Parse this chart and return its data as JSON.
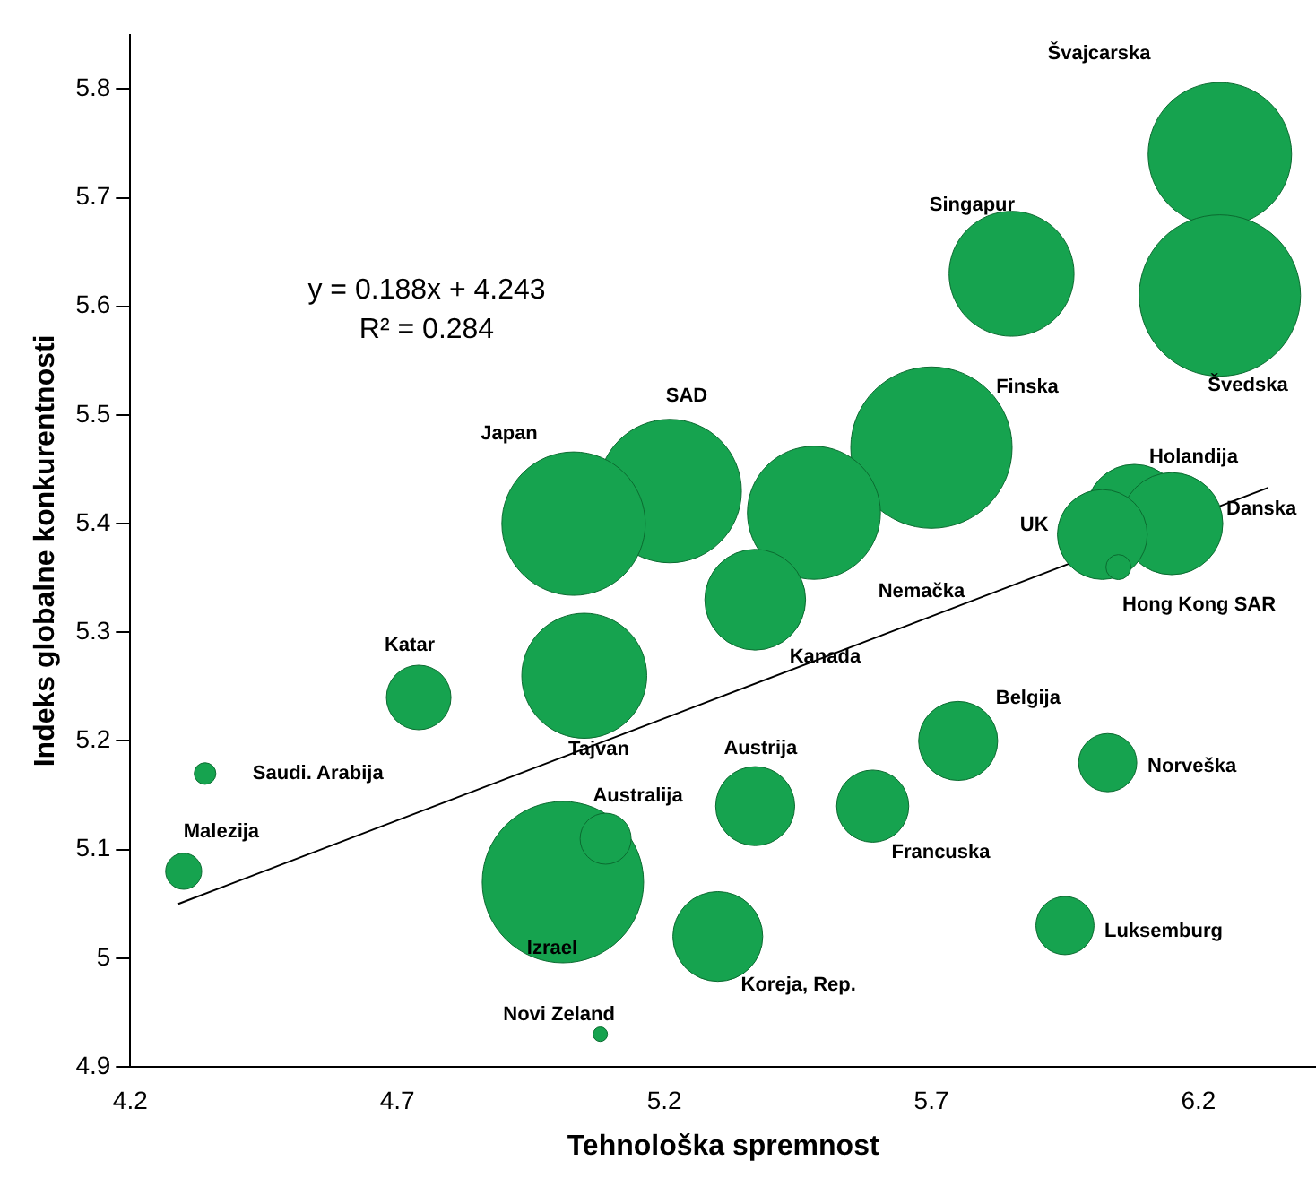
{
  "chart_data": {
    "type": "bubble",
    "xlabel": "Tehnološka spremnost",
    "ylabel": "Indeks globalne konkurentnosti",
    "xlim": [
      4.2,
      6.42
    ],
    "ylim": [
      4.9,
      5.85
    ],
    "xticks": [
      4.2,
      4.7,
      5.2,
      5.7,
      6.2
    ],
    "yticks": [
      4.9,
      5,
      5.1,
      5.2,
      5.3,
      5.4,
      5.5,
      5.6,
      5.7,
      5.8
    ],
    "grid": false,
    "legend": false,
    "series": [
      {
        "type": "bubble",
        "color": "#16a34f",
        "x": [
          6.24,
          6.24,
          5.85,
          5.7,
          5.21,
          5.03,
          6.08,
          6.15,
          6.02,
          6.05,
          5.48,
          5.37,
          4.74,
          5.05,
          5.75,
          6.03,
          4.34,
          5.37,
          5.59,
          4.3,
          5.01,
          5.09,
          5.3,
          5.95,
          5.08
        ],
        "values": [
          5.74,
          5.61,
          5.63,
          5.47,
          5.43,
          5.4,
          5.41,
          5.4,
          5.39,
          5.36,
          5.41,
          5.33,
          5.24,
          5.26,
          5.2,
          5.18,
          5.17,
          5.14,
          5.14,
          5.08,
          5.07,
          5.11,
          5.02,
          5.03,
          4.93
        ],
        "sizes": [
          0.79,
          1,
          0.6,
          1,
          0.79,
          0.79,
          0.36,
          0.4,
          0.31,
          0.024,
          0.68,
          0.39,
          0.16,
          0.6,
          0.24,
          0.13,
          0.018,
          0.24,
          0.2,
          0.05,
          1,
          0.1,
          0.31,
          0.13,
          0.008
        ]
      },
      {
        "type": "line",
        "color": "#000000",
        "x": [
          4.29,
          6.33
        ],
        "values": [
          5.05,
          5.433
        ]
      }
    ],
    "annotations": [
      "y = 0.188x + 4.243",
      "R² = 0.284",
      "Švajcarska",
      "Švedska",
      "Finska",
      "SAD",
      "Japan",
      "Nemačka",
      "Tajvan",
      {
        "text": "Singapur",
        "x": 5.85,
        "y": 5.63
      },
      {
        "text": "Holandija",
        "x": 6.08,
        "y": 5.41
      },
      {
        "text": "Danska",
        "x": 6.15,
        "y": 5.4
      },
      {
        "text": "UK",
        "x": 6.02,
        "y": 5.39
      },
      {
        "text": "Hong Kong SAR",
        "x": 6.05,
        "y": 5.36
      },
      {
        "text": "Kanada",
        "x": 5.37,
        "y": 5.33
      },
      {
        "text": "Katar",
        "x": 4.74,
        "y": 5.24
      },
      {
        "text": "Belgija",
        "x": 5.75,
        "y": 5.2
      },
      {
        "text": "Norveška",
        "x": 6.03,
        "y": 5.18
      },
      {
        "text": "Saudi. Arabija",
        "x": 4.34,
        "y": 5.17
      },
      {
        "text": "Austrija",
        "x": 5.37,
        "y": 5.14
      },
      {
        "text": "Francuska",
        "x": 5.59,
        "y": 5.14
      },
      {
        "text": "Malezija",
        "x": 4.3,
        "y": 5.08
      },
      {
        "text": "Izrael",
        "x": 5.01,
        "y": 5.07
      },
      {
        "text": "Australija",
        "x": 5.09,
        "y": 5.11
      },
      {
        "text": "Koreja, Rep.",
        "x": 5.3,
        "y": 5.02
      },
      {
        "text": "Luksemburg",
        "x": 5.95,
        "y": 5.03
      },
      {
        "text": "Novi Zeland",
        "x": 5.08,
        "y": 4.93
      }
    ]
  }
}
